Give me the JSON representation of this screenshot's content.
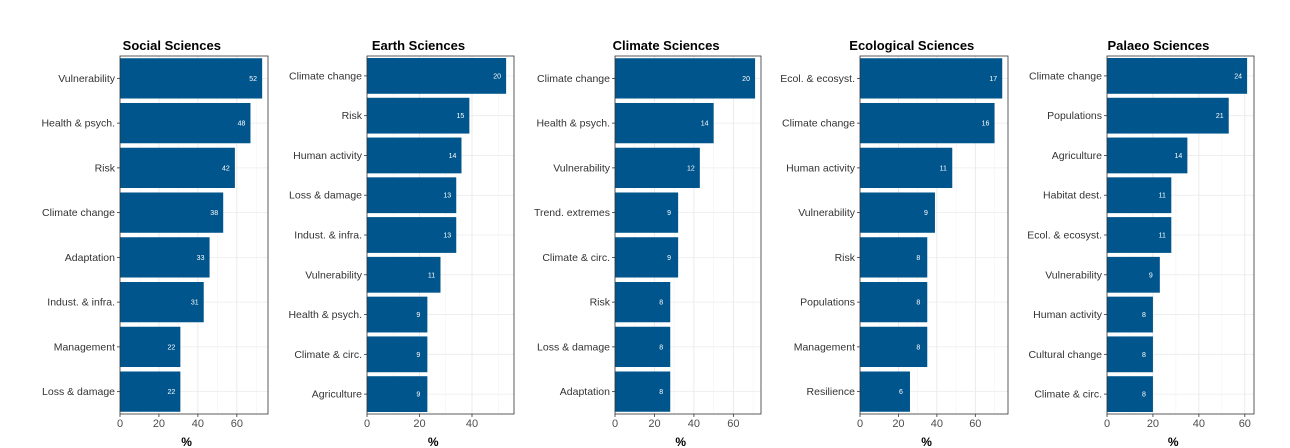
{
  "chart_data": [
    {
      "type": "bar",
      "orientation": "horizontal",
      "title": "Social Sciences",
      "xlabel": "%",
      "xlim": [
        0,
        76
      ],
      "xticks": [
        0,
        20,
        40,
        60
      ],
      "grid": true,
      "bar_color": "#00558c",
      "categories": [
        "Vulnerability",
        "Health & psych.",
        "Risk",
        "Climate change",
        "Adaptation",
        "Indust. & infra.",
        "Management",
        "Loss & damage"
      ],
      "values": [
        73,
        67,
        59,
        53,
        46,
        43,
        31,
        31
      ],
      "data_labels": [
        "52",
        "48",
        "42",
        "38",
        "33",
        "31",
        "22",
        "22"
      ]
    },
    {
      "type": "bar",
      "orientation": "horizontal",
      "title": "Earth Sciences",
      "xlabel": "%",
      "xlim": [
        0,
        56
      ],
      "xticks": [
        0,
        20,
        40
      ],
      "grid": true,
      "bar_color": "#00558c",
      "categories": [
        "Climate change",
        "Risk",
        "Human activity",
        "Loss & damage",
        "Indust. & infra.",
        "Vulnerability",
        "Health & psych.",
        "Climate & circ.",
        "Agriculture"
      ],
      "values": [
        53,
        39,
        36,
        34,
        34,
        28,
        23,
        23,
        23
      ],
      "data_labels": [
        "20",
        "15",
        "14",
        "13",
        "13",
        "11",
        "9",
        "9",
        "9"
      ]
    },
    {
      "type": "bar",
      "orientation": "horizontal",
      "title": "Climate Sciences",
      "xlabel": "%",
      "xlim": [
        0,
        74
      ],
      "xticks": [
        0,
        20,
        40,
        60
      ],
      "grid": true,
      "bar_color": "#00558c",
      "categories": [
        "Climate change",
        "Health & psych.",
        "Vulnerability",
        "Trend. extremes",
        "Climate & circ.",
        "Risk",
        "Loss & damage",
        "Adaptation"
      ],
      "values": [
        71,
        50,
        43,
        32,
        32,
        28,
        28,
        28
      ],
      "data_labels": [
        "20",
        "14",
        "12",
        "9",
        "9",
        "8",
        "8",
        "8"
      ]
    },
    {
      "type": "bar",
      "orientation": "horizontal",
      "title": "Ecological Sciences",
      "xlabel": "%",
      "xlim": [
        0,
        77
      ],
      "xticks": [
        0,
        20,
        40,
        60
      ],
      "grid": true,
      "bar_color": "#00558c",
      "categories": [
        "Ecol. & ecosyst.",
        "Climate change",
        "Human activity",
        "Vulnerability",
        "Risk",
        "Populations",
        "Management",
        "Resilience"
      ],
      "values": [
        74,
        70,
        48,
        39,
        35,
        35,
        35,
        26
      ],
      "data_labels": [
        "17",
        "16",
        "11",
        "9",
        "8",
        "8",
        "8",
        "6"
      ]
    },
    {
      "type": "bar",
      "orientation": "horizontal",
      "title": "Palaeo Sciences",
      "xlabel": "%",
      "xlim": [
        0,
        64
      ],
      "xticks": [
        0,
        20,
        40,
        60
      ],
      "grid": true,
      "bar_color": "#00558c",
      "categories": [
        "Climate change",
        "Populations",
        "Agriculture",
        "Habitat dest.",
        "Ecol. & ecosyst.",
        "Vulnerability",
        "Human activity",
        "Cultural change",
        "Climate & circ."
      ],
      "values": [
        61,
        53,
        35,
        28,
        28,
        23,
        20,
        20,
        20
      ],
      "data_labels": [
        "24",
        "21",
        "14",
        "11",
        "11",
        "9",
        "8",
        "8",
        "8"
      ]
    }
  ]
}
